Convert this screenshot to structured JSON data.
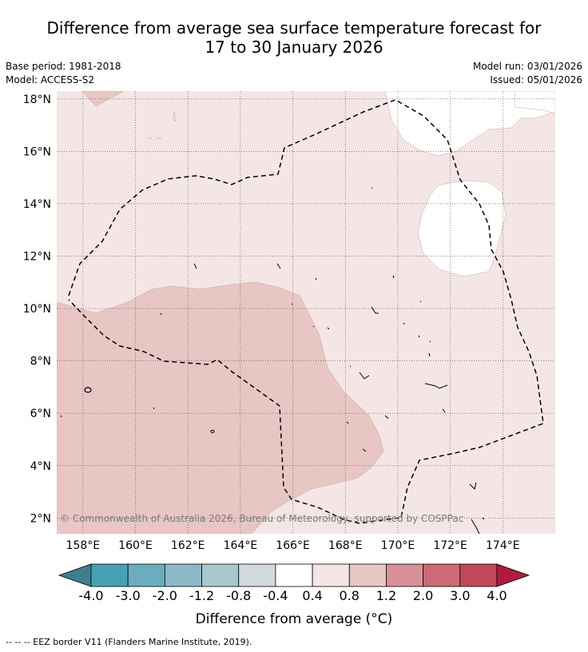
{
  "header": {
    "title_line1": "Difference from average sea surface temperature forecast for",
    "title_line2": "17 to 30 January 2026",
    "base_period": "Base period: 1981-2018",
    "model": "Model: ACCESS-S2",
    "model_run": "Model run: 03/01/2026",
    "issued": "Issued: 05/01/2026"
  },
  "map": {
    "lon_ticks": [
      "158°E",
      "160°E",
      "162°E",
      "164°E",
      "166°E",
      "168°E",
      "170°E",
      "172°E",
      "174°E"
    ],
    "lat_ticks": [
      "18°N",
      "16°N",
      "14°N",
      "12°N",
      "10°N",
      "8°N",
      "6°N",
      "4°N",
      "2°N"
    ],
    "extent": {
      "lon_min": 157.0,
      "lon_max": 176.0,
      "lat_min": 1.4,
      "lat_max": 18.3
    },
    "copyright": "© Commonwealth of Australia 2026, Bureau of Meteorology, supported by COSPPac",
    "fill_colors": {
      "light_pink": "#f4e6e5",
      "pink": "#e8c6c4",
      "white": "#ffffff"
    }
  },
  "colorbar": {
    "boundaries": [
      "-4.0",
      "-3.0",
      "-2.0",
      "-1.2",
      "-0.8",
      "-0.4",
      "0.4",
      "0.8",
      "1.2",
      "2.0",
      "3.0",
      "4.0"
    ],
    "colors": [
      "#3d7f8c",
      "#48a0b4",
      "#6aadbf",
      "#8cb9c6",
      "#a9c8cd",
      "#d2d9da",
      "#ffffff",
      "#f4e6e5",
      "#e8c6c4",
      "#d88f98",
      "#cc6a75",
      "#c0485a",
      "#b01b3e"
    ],
    "label": "Difference from average (°C)"
  },
  "legend": {
    "eez": "--  --  -- EEZ border V11 (Flanders Marine Institute, 2019)."
  }
}
